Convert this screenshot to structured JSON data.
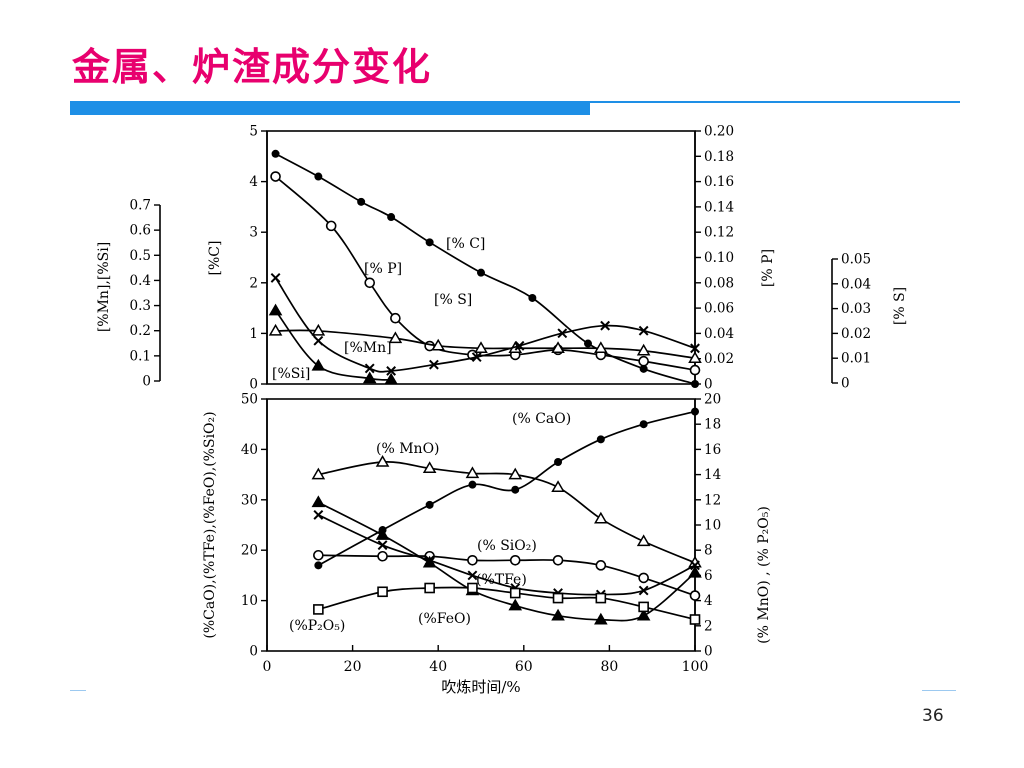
{
  "slide": {
    "title": "金属、炉渣成分变化",
    "page_number": "36",
    "accent_color": "#1e8fe6",
    "title_color": "#e8006e"
  },
  "chart_data": [
    {
      "type": "line",
      "x_range": [
        0,
        100
      ],
      "x_ticks": [],
      "axes": {
        "C": {
          "label": "[%C]",
          "ylim": [
            0,
            5
          ],
          "ticks": [
            "0",
            "1",
            "2",
            "3",
            "4",
            "5"
          ]
        },
        "MnSi": {
          "label": "[%Mn],[%Si]",
          "ylim": [
            0,
            0.7
          ],
          "ticks": [
            "0",
            "0.1",
            "0.2",
            "0.3",
            "0.4",
            "0.5",
            "0.6",
            "0.7"
          ]
        },
        "P": {
          "label": "[% P]",
          "ylim": [
            0,
            0.2
          ],
          "ticks": [
            "0",
            "0.02",
            "0.04",
            "0.06",
            "0.08",
            "0.10",
            "0.12",
            "0.14",
            "0.16",
            "0.18",
            "0.20"
          ]
        },
        "S": {
          "label": "[% S]",
          "ylim": [
            0,
            0.05
          ],
          "ticks": [
            "0",
            "0.01",
            "0.02",
            "0.03",
            "0.04",
            "0.05"
          ]
        }
      },
      "series": [
        {
          "name": "[% C]",
          "axis": "C",
          "marker": "dot",
          "x": [
            2,
            12,
            22,
            29,
            38,
            50,
            62,
            75,
            88,
            100
          ],
          "y": [
            4.55,
            4.1,
            3.6,
            3.3,
            2.8,
            2.2,
            1.7,
            0.8,
            0.3,
            0.0
          ]
        },
        {
          "name": "[% P]",
          "axis": "P",
          "marker": "circle",
          "x": [
            2,
            15,
            24,
            30,
            38,
            48,
            58,
            68,
            78,
            88,
            100
          ],
          "y": [
            0.164,
            0.125,
            0.08,
            0.052,
            0.03,
            0.023,
            0.023,
            0.027,
            0.023,
            0.018,
            0.011
          ]
        },
        {
          "name": "[% S]",
          "axis": "S",
          "marker": "triangle",
          "x": [
            2,
            12,
            30,
            40,
            50,
            58,
            68,
            78,
            88,
            100
          ],
          "y": [
            0.021,
            0.021,
            0.018,
            0.015,
            0.014,
            0.014,
            0.014,
            0.014,
            0.013,
            0.01
          ]
        },
        {
          "name": "[%Mn]",
          "axis": "MnSi",
          "marker": "x",
          "x": [
            2,
            12,
            24,
            29,
            39,
            49,
            59,
            69,
            79,
            88,
            100
          ],
          "y": [
            0.41,
            0.16,
            0.05,
            0.04,
            0.065,
            0.095,
            0.14,
            0.19,
            0.22,
            0.2,
            0.13
          ]
        },
        {
          "name": "[%Si]",
          "axis": "MnSi",
          "marker": "filled-triangle",
          "x": [
            2,
            12,
            24,
            29
          ],
          "y": [
            0.28,
            0.06,
            0.01,
            0.005
          ]
        }
      ]
    },
    {
      "type": "line",
      "xlabel": "吹炼时间/%",
      "xlim": [
        0,
        100
      ],
      "x_ticks": [
        "0",
        "20",
        "40",
        "60",
        "80",
        "100"
      ],
      "axes": {
        "left": {
          "label": "(%CaO),(%TFe),(%FeO),(%SiO₂)",
          "ylim": [
            0,
            50
          ],
          "ticks": [
            "0",
            "10",
            "20",
            "30",
            "40",
            "50"
          ]
        },
        "right": {
          "label": "(% MnO) , (% P₂O₅)",
          "ylim": [
            0,
            20
          ],
          "ticks": [
            "0",
            "2",
            "4",
            "6",
            "8",
            "10",
            "12",
            "14",
            "16",
            "18",
            "20"
          ]
        }
      },
      "series": [
        {
          "name": "(% CaO)",
          "axis": "left",
          "marker": "dot",
          "x": [
            12,
            27,
            38,
            48,
            58,
            68,
            78,
            88,
            100
          ],
          "y": [
            17,
            24,
            29,
            33,
            32,
            37.5,
            42,
            45,
            47.5
          ]
        },
        {
          "name": "(% MnO)",
          "axis": "right",
          "marker": "triangle",
          "x": [
            12,
            27,
            38,
            48,
            58,
            68,
            78,
            88,
            100
          ],
          "y": [
            14.0,
            15.0,
            14.5,
            14.1,
            14.0,
            13.0,
            10.5,
            8.7,
            7.0
          ]
        },
        {
          "name": "(% SiO₂)",
          "axis": "left",
          "marker": "circle",
          "x": [
            12,
            27,
            38,
            48,
            58,
            68,
            78,
            88,
            100
          ],
          "y": [
            19,
            18.8,
            18.8,
            18,
            18,
            18,
            17,
            14.5,
            11
          ]
        },
        {
          "name": "(%TFe)",
          "axis": "left",
          "marker": "x",
          "x": [
            12,
            27,
            38,
            48,
            58,
            68,
            78,
            88,
            100
          ],
          "y": [
            27,
            21,
            18,
            15,
            12.5,
            11.5,
            11.2,
            12,
            17
          ]
        },
        {
          "name": "(%FeO)",
          "axis": "left",
          "marker": "filled-triangle",
          "x": [
            12,
            27,
            38,
            48,
            58,
            68,
            78,
            88,
            100
          ],
          "y": [
            29.5,
            23,
            17.5,
            12,
            9,
            7,
            6.2,
            7,
            15.5
          ]
        },
        {
          "name": "(%P₂O₅)",
          "axis": "right",
          "marker": "square",
          "x": [
            12,
            27,
            38,
            48,
            58,
            68,
            78,
            88,
            100
          ],
          "y": [
            3.3,
            4.7,
            5.0,
            5.0,
            4.6,
            4.2,
            4.2,
            3.5,
            2.5
          ]
        }
      ]
    }
  ]
}
